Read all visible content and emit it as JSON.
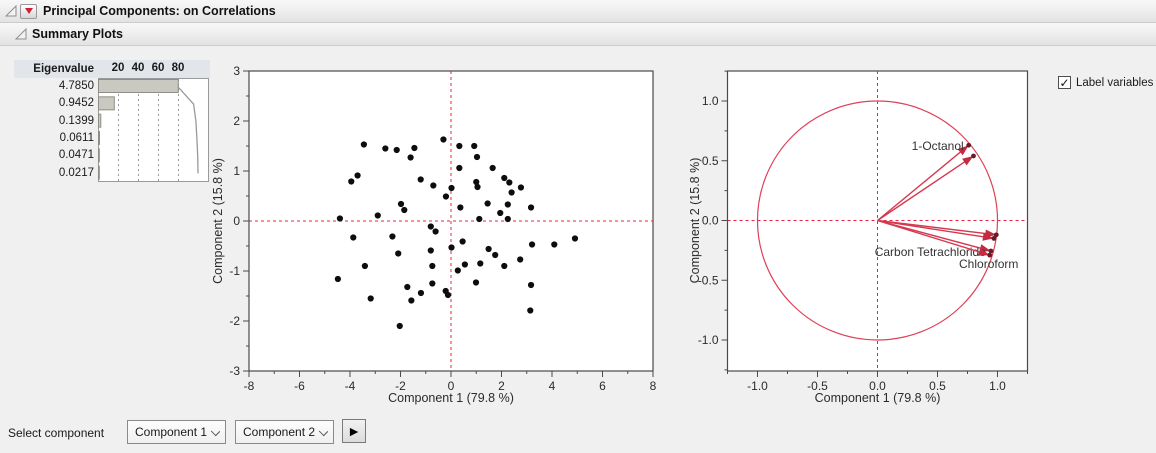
{
  "header": {
    "title": "Principal Components: on Correlations"
  },
  "subheader": {
    "title": "Summary Plots"
  },
  "colors": {
    "accent_red": "#dd4157",
    "arrow_red": "#d63850",
    "arrowhead_red": "#c22b40",
    "dash_red": "#e82440",
    "dot_black": "#0d0d0d",
    "tip_dot": "#6b1a26",
    "bar_fill": "#c9c9c1",
    "bar_stroke": "#8e8e86",
    "cumline_gray": "#9a9a9a",
    "frame_gray": "#4a4a4a"
  },
  "eigenvalues": {
    "header": "Eigenvalue",
    "values": [
      "4.7850",
      "0.9452",
      "0.1399",
      "0.0611",
      "0.0471",
      "0.0217"
    ],
    "axis_ticks": [
      20,
      40,
      60,
      80
    ]
  },
  "controls": {
    "label_variables": {
      "label": "Label variables",
      "checked": true
    },
    "select_component_label": "Select component",
    "component_x": "Component 1",
    "component_y": "Component 2"
  },
  "chart_data": [
    {
      "name": "eigenvalue_pareto",
      "type": "bar",
      "orientation": "horizontal",
      "categories": [
        "4.7850",
        "0.9452",
        "0.1399",
        "0.0611",
        "0.0471",
        "0.0217"
      ],
      "values": [
        79.8,
        15.8,
        2.3,
        1.0,
        0.8,
        0.4
      ],
      "cumulative": [
        79.8,
        95.6,
        97.9,
        98.9,
        99.7,
        100.0
      ],
      "xticks": [
        20,
        40,
        60,
        80
      ],
      "xlim": [
        0,
        110
      ],
      "grid": "dashed-vertical"
    },
    {
      "name": "score_plot",
      "type": "scatter",
      "xlabel": "Component 1  (79.8 %)",
      "ylabel": "Component 2  (15.8 %)",
      "xlim": [
        -8,
        8
      ],
      "ylim": [
        -3,
        3
      ],
      "xticks": [
        -8,
        -6,
        -4,
        -2,
        0,
        2,
        4,
        6,
        8
      ],
      "yticks": [
        -3,
        -2,
        -1,
        0,
        1,
        2,
        3
      ],
      "reference_lines": {
        "x": 0,
        "y": 0
      },
      "points": [
        [
          -3.45,
          1.53
        ],
        [
          -2.6,
          1.45
        ],
        [
          -2.15,
          1.42
        ],
        [
          -1.45,
          1.46
        ],
        [
          -1.6,
          1.27
        ],
        [
          -0.3,
          1.63
        ],
        [
          -3.95,
          0.79
        ],
        [
          -3.7,
          0.91
        ],
        [
          -1.2,
          0.83
        ],
        [
          -0.7,
          0.71
        ],
        [
          -0.2,
          0.49
        ],
        [
          -1.98,
          0.34
        ],
        [
          -1.85,
          0.22
        ],
        [
          -2.9,
          0.11
        ],
        [
          -4.4,
          0.05
        ],
        [
          0.33,
          1.5
        ],
        [
          0.92,
          1.5
        ],
        [
          1.03,
          1.28
        ],
        [
          0.33,
          1.06
        ],
        [
          1.65,
          1.06
        ],
        [
          2.11,
          0.86
        ],
        [
          2.31,
          0.77
        ],
        [
          1.0,
          0.78
        ],
        [
          1.05,
          0.68
        ],
        [
          2.77,
          0.67
        ],
        [
          2.4,
          0.57
        ],
        [
          0.02,
          0.66
        ],
        [
          1.45,
          0.35
        ],
        [
          2.25,
          0.33
        ],
        [
          3.17,
          0.27
        ],
        [
          0.37,
          0.27
        ],
        [
          1.95,
          0.16
        ],
        [
          1.12,
          0.04
        ],
        [
          2.25,
          0.04
        ],
        [
          -3.87,
          -0.33
        ],
        [
          -2.32,
          -0.31
        ],
        [
          -0.8,
          -0.11
        ],
        [
          -0.61,
          -0.21
        ],
        [
          -2.09,
          -0.65
        ],
        [
          -0.8,
          -0.59
        ],
        [
          -3.41,
          -0.9
        ],
        [
          -0.74,
          -0.9
        ],
        [
          -4.48,
          -1.16
        ],
        [
          -1.73,
          -1.32
        ],
        [
          -0.74,
          -1.25
        ],
        [
          -0.21,
          -1.4
        ],
        [
          -0.12,
          -1.48
        ],
        [
          -1.19,
          -1.44
        ],
        [
          -3.18,
          -1.55
        ],
        [
          -1.57,
          -1.59
        ],
        [
          -2.03,
          -2.1
        ],
        [
          0.46,
          -0.41
        ],
        [
          0.02,
          -0.53
        ],
        [
          3.21,
          -0.47
        ],
        [
          4.09,
          -0.47
        ],
        [
          4.91,
          -0.35
        ],
        [
          1.49,
          -0.56
        ],
        [
          1.75,
          -0.68
        ],
        [
          0.55,
          -0.87
        ],
        [
          1.16,
          -0.85
        ],
        [
          0.27,
          -0.99
        ],
        [
          2.11,
          -0.9
        ],
        [
          2.74,
          -0.77
        ],
        [
          0.99,
          -1.23
        ],
        [
          3.17,
          -1.28
        ],
        [
          3.14,
          -1.79
        ]
      ]
    },
    {
      "name": "loading_plot",
      "type": "scatter",
      "xlabel": "Component 1  (79.8 %)",
      "ylabel": "Component 2  (15.8 %)",
      "xlim": [
        -1.25,
        1.25
      ],
      "ylim": [
        -1.25,
        1.25
      ],
      "xticks": [
        -1.0,
        -0.5,
        0.0,
        0.5,
        1.0
      ],
      "yticks": [
        -1.0,
        -0.5,
        0.0,
        0.5,
        1.0
      ],
      "unit_circle": true,
      "reference_lines": {
        "x": 0,
        "y": 0
      },
      "vectors": [
        {
          "x": 0.76,
          "y": 0.63,
          "label": "1-Octanol",
          "label_pos": "left"
        },
        {
          "x": 0.8,
          "y": 0.54,
          "label": "",
          "label_pos": "none"
        },
        {
          "x": 0.99,
          "y": -0.12,
          "label": "",
          "label_pos": "none"
        },
        {
          "x": 0.97,
          "y": -0.15,
          "label": "",
          "label_pos": "none"
        },
        {
          "x": 0.945,
          "y": -0.255,
          "label": "Carbon Tetrachloride",
          "label_pos": "left"
        },
        {
          "x": 0.935,
          "y": -0.29,
          "label": "Chloroform",
          "label_pos": "below"
        }
      ]
    }
  ]
}
